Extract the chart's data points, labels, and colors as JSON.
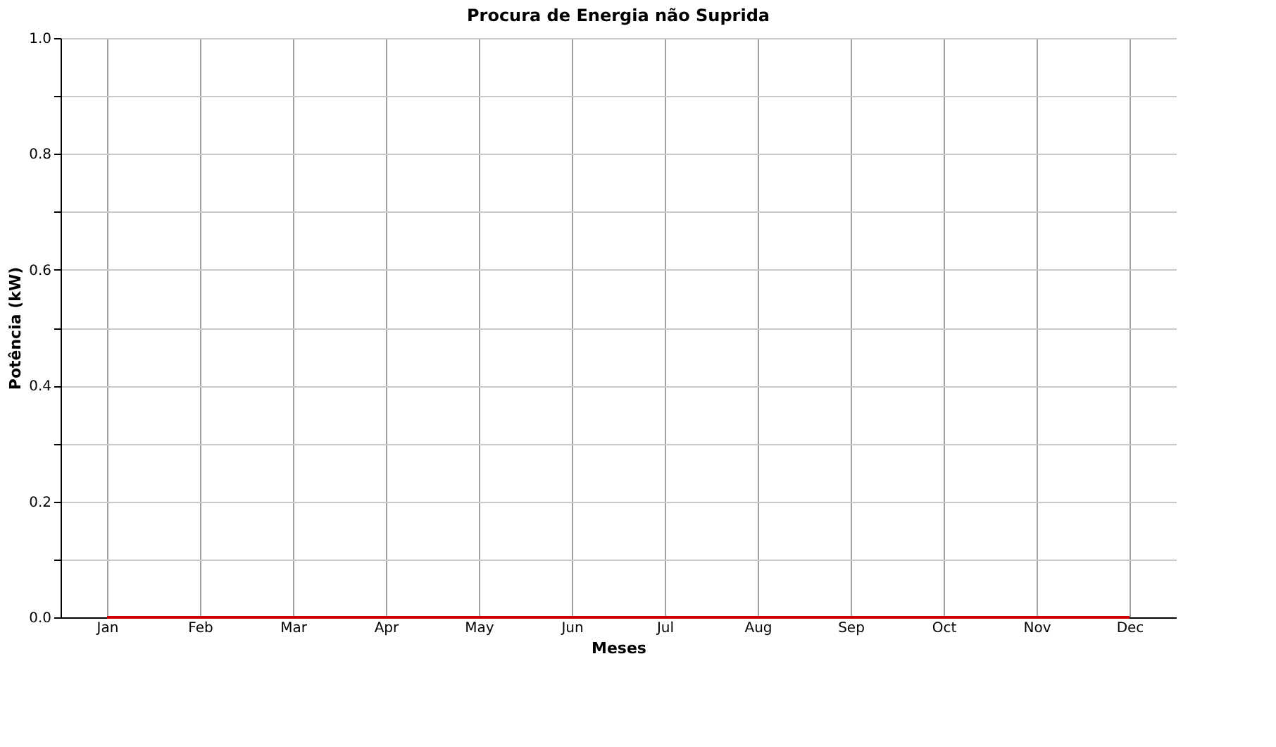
{
  "chart_data": {
    "type": "line",
    "title": "Procura de Energia não Suprida",
    "xlabel": "Meses",
    "ylabel": "Potência (kW)",
    "categories": [
      "Jan",
      "Feb",
      "Mar",
      "Apr",
      "May",
      "Jun",
      "Jul",
      "Aug",
      "Sep",
      "Oct",
      "Nov",
      "Dec"
    ],
    "series": [
      {
        "color": "#cc0000",
        "values": [
          0,
          0,
          0,
          0,
          0,
          0,
          0,
          0,
          0,
          0,
          0,
          0
        ]
      }
    ],
    "ylim": [
      0,
      1.0
    ],
    "yticks": [
      {
        "value": 0,
        "label": "0.0"
      },
      {
        "value": 0.1,
        "label": null
      },
      {
        "value": 0.2,
        "label": "0.2"
      },
      {
        "value": 0.3,
        "label": null
      },
      {
        "value": 0.4,
        "label": "0.4"
      },
      {
        "value": 0.5,
        "label": null
      },
      {
        "value": 0.6,
        "label": "0.6"
      },
      {
        "value": 0.7,
        "label": null
      },
      {
        "value": 0.8,
        "label": "0.8"
      },
      {
        "value": 0.9,
        "label": null
      },
      {
        "value": 1.0,
        "label": "1.0"
      }
    ],
    "grid": true,
    "legend": false,
    "marker": "none",
    "line_style": "solid"
  }
}
